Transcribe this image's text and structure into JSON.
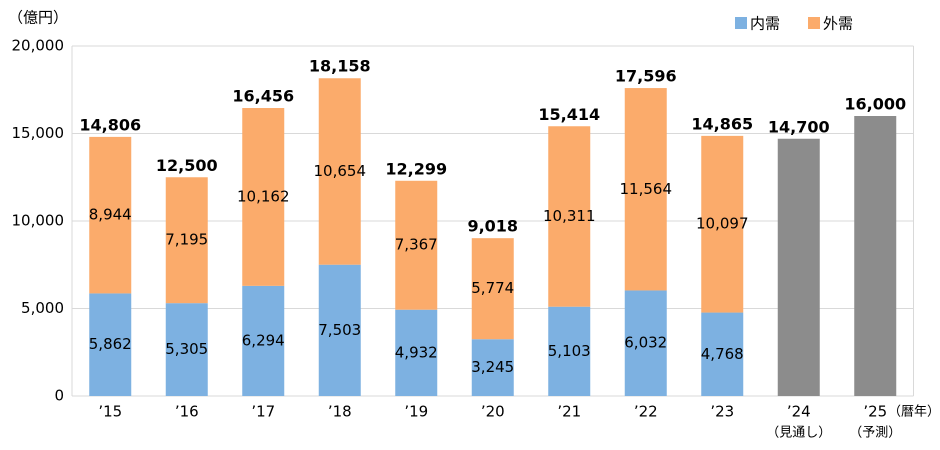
{
  "chart_data": {
    "type": "stacked_bar",
    "y_unit": "（億円）",
    "x_unit": "（暦年）",
    "categories": [
      "’15",
      "’16",
      "’17",
      "’18",
      "’19",
      "’20",
      "’21",
      "’22",
      "’23",
      "’24",
      "’25"
    ],
    "category_notes": [
      null,
      null,
      null,
      null,
      null,
      null,
      null,
      null,
      null,
      "（見通し）",
      "（予測）"
    ],
    "series": [
      {
        "name": "内需",
        "color": "#7db1e1",
        "values": [
          5862,
          5305,
          6294,
          7503,
          4932,
          3245,
          5103,
          6032,
          4768,
          null,
          null
        ],
        "value_labels": [
          "5,862",
          "5,305",
          "6,294",
          "7,503",
          "4,932",
          "3,245",
          "5,103",
          "6,032",
          "4,768",
          null,
          null
        ]
      },
      {
        "name": "外需",
        "color": "#fbab6b",
        "values": [
          8944,
          7195,
          10162,
          10654,
          7367,
          5774,
          10311,
          11564,
          10097,
          null,
          null
        ],
        "value_labels": [
          "8,944",
          "7,195",
          "10,162",
          "10,654",
          "7,367",
          "5,774",
          "10,311",
          "11,564",
          "10,097",
          null,
          null
        ]
      }
    ],
    "totals": {
      "color": "#8c8c8c",
      "values": [
        14806,
        12500,
        16456,
        18158,
        12299,
        9018,
        15414,
        17596,
        14865,
        14700,
        16000
      ],
      "value_labels": [
        "14,806",
        "12,500",
        "16,456",
        "18,158",
        "12,299",
        "9,018",
        "15,414",
        "17,596",
        "14,865",
        "14,700",
        "16,000"
      ]
    },
    "ylim": [
      0,
      20000
    ],
    "yticks": [
      0,
      {
        "value": 5000,
        "label": "5,000"
      },
      {
        "value": 10000,
        "label": "10,000"
      },
      {
        "value": 15000,
        "label": "15,000"
      },
      {
        "value": 20000,
        "label": "20,000"
      }
    ],
    "grid": true
  }
}
